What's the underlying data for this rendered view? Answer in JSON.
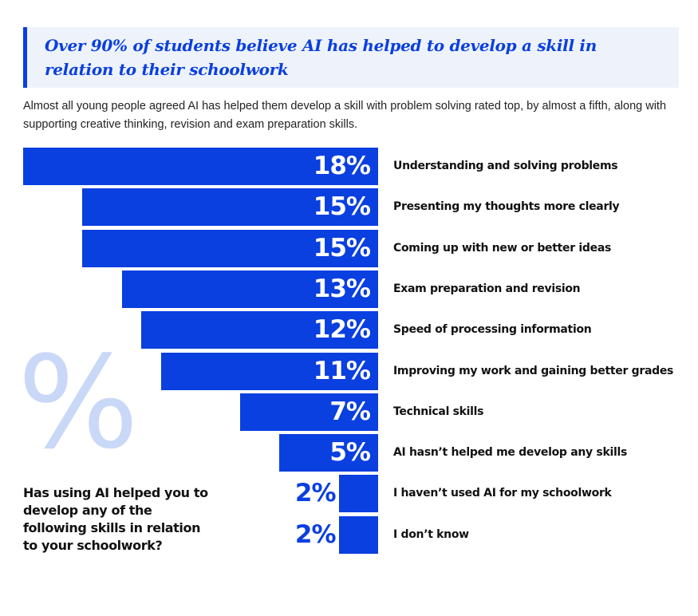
{
  "header": {
    "title": "Over 90% of students believe AI has helped to develop a skill in relation to their schoolwork"
  },
  "subtitle": "Almost all young people agreed AI has helped them develop a skill with problem solving rated top, by almost a fifth, along with supporting creative thinking, revision and exam preparation skills.",
  "decor": {
    "percent_symbol": "%"
  },
  "question": "Has using AI helped you to develop any of the following skills in relation to your schoolwork?",
  "colors": {
    "bar": "#0a3fe0",
    "decor": "#c9d8f6",
    "header_bg": "#eef3fb"
  },
  "chart_data": {
    "type": "bar",
    "orientation": "horizontal",
    "title": "Has using AI helped you to develop any of the following skills in relation to your schoolwork?",
    "categories": [
      "Understanding and solving problems",
      "Presenting my thoughts more clearly",
      "Coming up with new or better ideas",
      "Exam preparation and revision",
      "Speed of processing information",
      "Improving my work and gaining better grades",
      "Technical skills",
      "AI hasn’t helped me develop any skills",
      "I haven’t used AI for my schoolwork",
      "I don’t know"
    ],
    "values": [
      18,
      15,
      15,
      13,
      12,
      11,
      7,
      5,
      2,
      2
    ],
    "value_labels": [
      "18%",
      "15%",
      "15%",
      "13%",
      "12%",
      "11%",
      "7%",
      "5%",
      "2%",
      "2%"
    ],
    "xlim": [
      0,
      18
    ],
    "grid": false
  }
}
